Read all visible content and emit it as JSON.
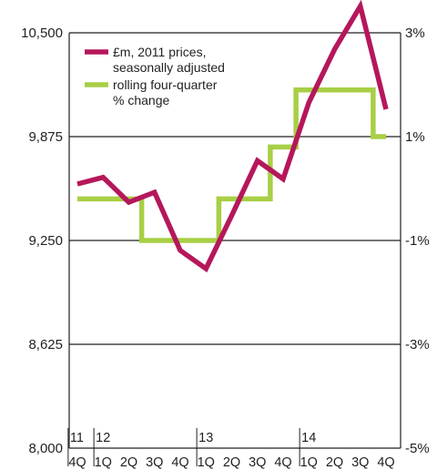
{
  "chart_data": {
    "type": "line",
    "categories": [
      "4Q",
      "1Q",
      "2Q",
      "3Q",
      "4Q",
      "1Q",
      "2Q",
      "3Q",
      "4Q",
      "1Q",
      "2Q",
      "3Q",
      "4Q"
    ],
    "year_markers": [
      {
        "label": "11",
        "index": 0
      },
      {
        "label": "12",
        "index": 1
      },
      {
        "label": "13",
        "index": 5
      },
      {
        "label": "14",
        "index": 9
      }
    ],
    "left_axis": {
      "ticks": [
        "8,000",
        "8,625",
        "9,250",
        "9,875",
        "10,500"
      ],
      "min": 8000,
      "max": 10500
    },
    "right_axis": {
      "ticks": [
        "-5%",
        "-3%",
        "-1%",
        "1%",
        "3%"
      ],
      "min": -5,
      "max": 3
    },
    "series": [
      {
        "name": "£m, 2011 prices, seasonally adjusted",
        "legend_lines": [
          "£m, 2011 prices,",
          "seasonally adjusted"
        ],
        "axis": "left",
        "color": "#b5175b",
        "values": [
          9590,
          9630,
          9480,
          9540,
          9190,
          9080,
          9400,
          9730,
          9620,
          10080,
          10400,
          10660,
          10040
        ]
      },
      {
        "name": "rolling four-quarter % change",
        "legend_lines": [
          "rolling four-quarter",
          "% change"
        ],
        "axis": "right",
        "color": "#a8cf45",
        "step": true,
        "values": [
          -0.2,
          -0.2,
          -0.2,
          -1.0,
          -1.0,
          -1.0,
          -0.2,
          -0.2,
          0.8,
          1.9,
          1.9,
          1.9,
          1.0
        ]
      }
    ],
    "grid": true,
    "legend_position": "top-left"
  }
}
